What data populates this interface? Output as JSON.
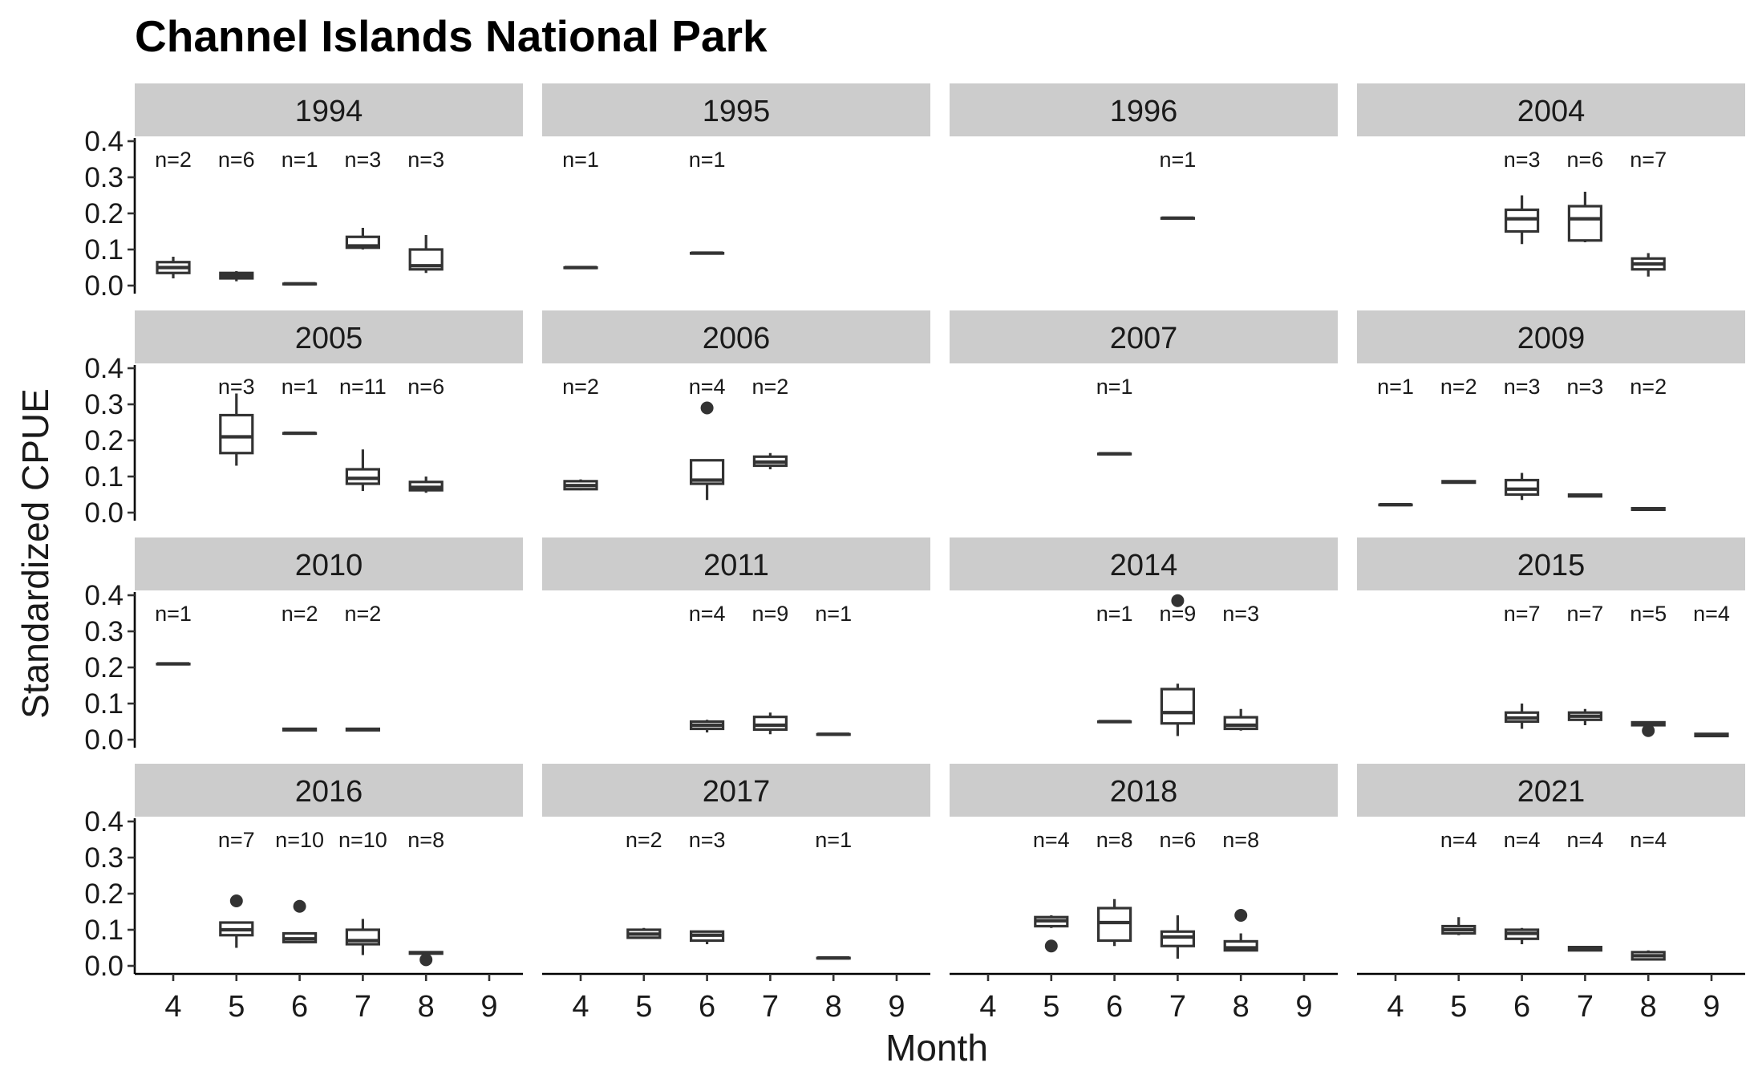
{
  "chart_data": {
    "type": "boxplot",
    "title": "Channel Islands National Park",
    "xlabel": "Month",
    "ylabel": "Standardized CPUE",
    "ylim": [
      0,
      0.4
    ],
    "yticks": [
      "0.0",
      "0.1",
      "0.2",
      "0.3",
      "0.4"
    ],
    "xticks": [
      "4",
      "5",
      "6",
      "7",
      "8",
      "9"
    ],
    "facet_rows": 4,
    "facet_cols": 4,
    "panels": [
      {
        "year": "1994",
        "boxes": [
          {
            "month": 4,
            "n": "n=2",
            "min": 0.02,
            "q1": 0.035,
            "median": 0.05,
            "q3": 0.065,
            "max": 0.08,
            "outliers": []
          },
          {
            "month": 5,
            "n": "n=6",
            "min": 0.012,
            "q1": 0.02,
            "median": 0.028,
            "q3": 0.035,
            "max": 0.04,
            "outliers": []
          },
          {
            "month": 6,
            "n": "n=1",
            "min": 0.005,
            "q1": 0.005,
            "median": 0.005,
            "q3": 0.005,
            "max": 0.005,
            "outliers": []
          },
          {
            "month": 7,
            "n": "n=3",
            "min": 0.1,
            "q1": 0.105,
            "median": 0.11,
            "q3": 0.135,
            "max": 0.16,
            "outliers": []
          },
          {
            "month": 8,
            "n": "n=3",
            "min": 0.035,
            "q1": 0.045,
            "median": 0.055,
            "q3": 0.1,
            "max": 0.14,
            "outliers": []
          }
        ]
      },
      {
        "year": "1995",
        "boxes": [
          {
            "month": 4,
            "n": "n=1",
            "min": 0.05,
            "q1": 0.05,
            "median": 0.05,
            "q3": 0.05,
            "max": 0.05,
            "outliers": []
          },
          {
            "month": 6,
            "n": "n=1",
            "min": 0.09,
            "q1": 0.09,
            "median": 0.09,
            "q3": 0.09,
            "max": 0.09,
            "outliers": []
          }
        ]
      },
      {
        "year": "1996",
        "boxes": [
          {
            "month": 7,
            "n": "n=1",
            "min": 0.187,
            "q1": 0.187,
            "median": 0.187,
            "q3": 0.187,
            "max": 0.187,
            "outliers": []
          }
        ]
      },
      {
        "year": "2004",
        "boxes": [
          {
            "month": 6,
            "n": "n=3",
            "min": 0.115,
            "q1": 0.15,
            "median": 0.185,
            "q3": 0.21,
            "max": 0.25,
            "outliers": []
          },
          {
            "month": 7,
            "n": "n=6",
            "min": 0.12,
            "q1": 0.125,
            "median": 0.185,
            "q3": 0.22,
            "max": 0.26,
            "outliers": []
          },
          {
            "month": 8,
            "n": "n=7",
            "min": 0.025,
            "q1": 0.045,
            "median": 0.06,
            "q3": 0.075,
            "max": 0.09,
            "outliers": []
          }
        ]
      },
      {
        "year": "2005",
        "boxes": [
          {
            "month": 5,
            "n": "n=3",
            "min": 0.13,
            "q1": 0.165,
            "median": 0.21,
            "q3": 0.27,
            "max": 0.33,
            "outliers": []
          },
          {
            "month": 6,
            "n": "n=1",
            "min": 0.22,
            "q1": 0.22,
            "median": 0.22,
            "q3": 0.22,
            "max": 0.22,
            "outliers": []
          },
          {
            "month": 7,
            "n": "n=11",
            "min": 0.06,
            "q1": 0.08,
            "median": 0.095,
            "q3": 0.12,
            "max": 0.175,
            "outliers": []
          },
          {
            "month": 8,
            "n": "n=6",
            "min": 0.055,
            "q1": 0.062,
            "median": 0.07,
            "q3": 0.085,
            "max": 0.1,
            "outliers": []
          }
        ]
      },
      {
        "year": "2006",
        "boxes": [
          {
            "month": 4,
            "n": "n=2",
            "min": 0.062,
            "q1": 0.065,
            "median": 0.075,
            "q3": 0.087,
            "max": 0.092,
            "outliers": []
          },
          {
            "month": 6,
            "n": "n=4",
            "min": 0.035,
            "q1": 0.08,
            "median": 0.09,
            "q3": 0.145,
            "max": 0.145,
            "outliers": [
              0.29
            ]
          },
          {
            "month": 7,
            "n": "n=2",
            "min": 0.12,
            "q1": 0.13,
            "median": 0.14,
            "q3": 0.155,
            "max": 0.165,
            "outliers": []
          }
        ]
      },
      {
        "year": "2007",
        "boxes": [
          {
            "month": 6,
            "n": "n=1",
            "min": 0.163,
            "q1": 0.163,
            "median": 0.163,
            "q3": 0.163,
            "max": 0.163,
            "outliers": []
          }
        ]
      },
      {
        "year": "2009",
        "boxes": [
          {
            "month": 4,
            "n": "n=1",
            "min": 0.022,
            "q1": 0.022,
            "median": 0.022,
            "q3": 0.022,
            "max": 0.022,
            "outliers": []
          },
          {
            "month": 5,
            "n": "n=2",
            "min": 0.082,
            "q1": 0.083,
            "median": 0.085,
            "q3": 0.087,
            "max": 0.088,
            "outliers": []
          },
          {
            "month": 6,
            "n": "n=3",
            "min": 0.035,
            "q1": 0.05,
            "median": 0.065,
            "q3": 0.09,
            "max": 0.11,
            "outliers": []
          },
          {
            "month": 7,
            "n": "n=3",
            "min": 0.045,
            "q1": 0.045,
            "median": 0.048,
            "q3": 0.05,
            "max": 0.052,
            "outliers": []
          },
          {
            "month": 8,
            "n": "n=2",
            "min": 0.007,
            "q1": 0.008,
            "median": 0.01,
            "q3": 0.012,
            "max": 0.013,
            "outliers": []
          }
        ]
      },
      {
        "year": "2010",
        "boxes": [
          {
            "month": 4,
            "n": "n=1",
            "min": 0.21,
            "q1": 0.21,
            "median": 0.21,
            "q3": 0.21,
            "max": 0.21,
            "outliers": []
          },
          {
            "month": 6,
            "n": "n=2",
            "min": 0.025,
            "q1": 0.026,
            "median": 0.028,
            "q3": 0.03,
            "max": 0.031,
            "outliers": []
          },
          {
            "month": 7,
            "n": "n=2",
            "min": 0.025,
            "q1": 0.026,
            "median": 0.028,
            "q3": 0.03,
            "max": 0.031,
            "outliers": []
          }
        ]
      },
      {
        "year": "2011",
        "boxes": [
          {
            "month": 6,
            "n": "n=4",
            "min": 0.02,
            "q1": 0.03,
            "median": 0.04,
            "q3": 0.05,
            "max": 0.055,
            "outliers": []
          },
          {
            "month": 7,
            "n": "n=9",
            "min": 0.015,
            "q1": 0.028,
            "median": 0.04,
            "q3": 0.063,
            "max": 0.075,
            "outliers": []
          },
          {
            "month": 8,
            "n": "n=1",
            "min": 0.015,
            "q1": 0.015,
            "median": 0.015,
            "q3": 0.015,
            "max": 0.015,
            "outliers": []
          }
        ]
      },
      {
        "year": "2014",
        "boxes": [
          {
            "month": 6,
            "n": "n=1",
            "min": 0.05,
            "q1": 0.05,
            "median": 0.05,
            "q3": 0.05,
            "max": 0.05,
            "outliers": []
          },
          {
            "month": 7,
            "n": "n=9",
            "min": 0.01,
            "q1": 0.045,
            "median": 0.075,
            "q3": 0.14,
            "max": 0.155,
            "outliers": [
              0.385
            ]
          },
          {
            "month": 8,
            "n": "n=3",
            "min": 0.025,
            "q1": 0.03,
            "median": 0.04,
            "q3": 0.062,
            "max": 0.085,
            "outliers": []
          }
        ]
      },
      {
        "year": "2015",
        "boxes": [
          {
            "month": 6,
            "n": "n=7",
            "min": 0.03,
            "q1": 0.05,
            "median": 0.06,
            "q3": 0.075,
            "max": 0.1,
            "outliers": []
          },
          {
            "month": 7,
            "n": "n=7",
            "min": 0.04,
            "q1": 0.055,
            "median": 0.065,
            "q3": 0.075,
            "max": 0.085,
            "outliers": []
          },
          {
            "month": 8,
            "n": "n=5",
            "min": 0.035,
            "q1": 0.04,
            "median": 0.045,
            "q3": 0.048,
            "max": 0.05,
            "outliers": [
              0.025
            ]
          },
          {
            "month": 9,
            "n": "n=4",
            "min": 0.008,
            "q1": 0.01,
            "median": 0.013,
            "q3": 0.016,
            "max": 0.018,
            "outliers": []
          }
        ]
      },
      {
        "year": "2016",
        "boxes": [
          {
            "month": 5,
            "n": "n=7",
            "min": 0.05,
            "q1": 0.085,
            "median": 0.1,
            "q3": 0.12,
            "max": 0.12,
            "outliers": [
              0.18
            ]
          },
          {
            "month": 6,
            "n": "n=10",
            "min": 0.063,
            "q1": 0.066,
            "median": 0.075,
            "q3": 0.09,
            "max": 0.09,
            "outliers": [
              0.165
            ]
          },
          {
            "month": 7,
            "n": "n=10",
            "min": 0.03,
            "q1": 0.06,
            "median": 0.07,
            "q3": 0.1,
            "max": 0.13,
            "outliers": []
          },
          {
            "month": 8,
            "n": "n=8",
            "min": 0.033,
            "q1": 0.034,
            "median": 0.036,
            "q3": 0.038,
            "max": 0.04,
            "outliers": [
              0.017
            ]
          }
        ]
      },
      {
        "year": "2017",
        "boxes": [
          {
            "month": 5,
            "n": "n=2",
            "min": 0.075,
            "q1": 0.078,
            "median": 0.088,
            "q3": 0.1,
            "max": 0.105,
            "outliers": []
          },
          {
            "month": 6,
            "n": "n=3",
            "min": 0.06,
            "q1": 0.07,
            "median": 0.085,
            "q3": 0.095,
            "max": 0.095,
            "outliers": []
          },
          {
            "month": 8,
            "n": "n=1",
            "min": 0.022,
            "q1": 0.022,
            "median": 0.022,
            "q3": 0.022,
            "max": 0.022,
            "outliers": []
          }
        ]
      },
      {
        "year": "2018",
        "boxes": [
          {
            "month": 5,
            "n": "n=4",
            "min": 0.105,
            "q1": 0.11,
            "median": 0.125,
            "q3": 0.135,
            "max": 0.14,
            "outliers": [
              0.055
            ]
          },
          {
            "month": 6,
            "n": "n=8",
            "min": 0.055,
            "q1": 0.07,
            "median": 0.12,
            "q3": 0.16,
            "max": 0.185,
            "outliers": []
          },
          {
            "month": 7,
            "n": "n=6",
            "min": 0.02,
            "q1": 0.055,
            "median": 0.08,
            "q3": 0.095,
            "max": 0.14,
            "outliers": []
          },
          {
            "month": 8,
            "n": "n=8",
            "min": 0.04,
            "q1": 0.043,
            "median": 0.05,
            "q3": 0.068,
            "max": 0.09,
            "outliers": [
              0.14
            ]
          }
        ]
      },
      {
        "year": "2021",
        "boxes": [
          {
            "month": 5,
            "n": "n=4",
            "min": 0.085,
            "q1": 0.09,
            "median": 0.1,
            "q3": 0.11,
            "max": 0.135,
            "outliers": []
          },
          {
            "month": 6,
            "n": "n=4",
            "min": 0.06,
            "q1": 0.075,
            "median": 0.09,
            "q3": 0.1,
            "max": 0.105,
            "outliers": []
          },
          {
            "month": 7,
            "n": "n=4",
            "min": 0.04,
            "q1": 0.043,
            "median": 0.048,
            "q3": 0.052,
            "max": 0.055,
            "outliers": []
          },
          {
            "month": 8,
            "n": "n=4",
            "min": 0.015,
            "q1": 0.018,
            "median": 0.028,
            "q3": 0.038,
            "max": 0.043,
            "outliers": []
          }
        ]
      }
    ]
  }
}
